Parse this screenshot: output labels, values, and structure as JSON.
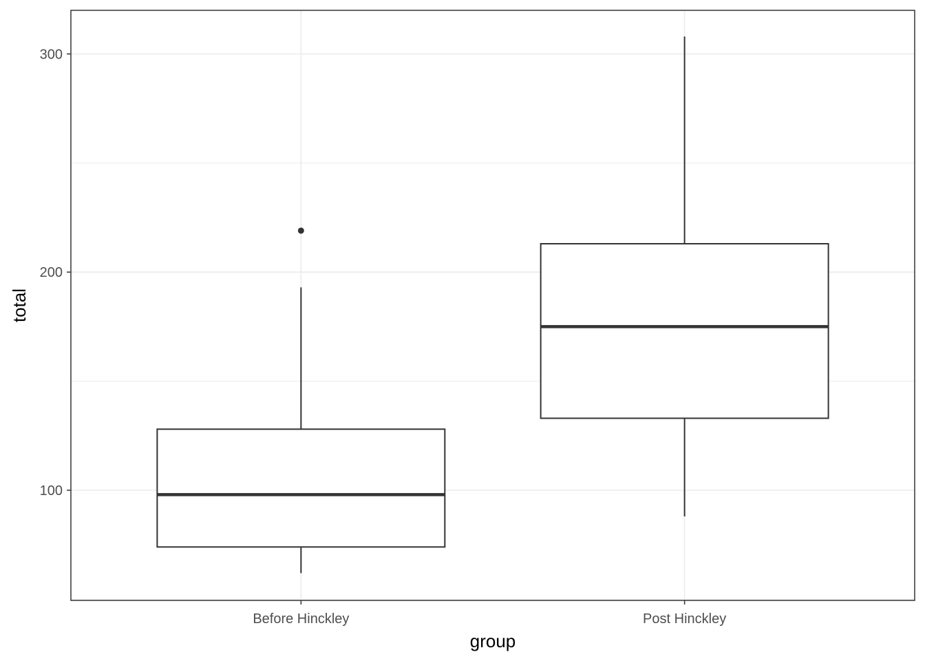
{
  "chart_data": {
    "type": "boxplot",
    "title": "",
    "xlabel": "group",
    "ylabel": "total",
    "ylim": [
      49.5,
      320
    ],
    "y_ticks": [
      100,
      200,
      300
    ],
    "y_tick_labels": [
      "100",
      "200",
      "300"
    ],
    "grid": true,
    "categories": [
      "Before Hinckley",
      "Post Hinckley"
    ],
    "boxes": [
      {
        "category": "Before Hinckley",
        "whisker_low": 62,
        "q1": 74,
        "median": 98,
        "q3": 128,
        "whisker_high": 193,
        "outliers": [
          219
        ]
      },
      {
        "category": "Post Hinckley",
        "whisker_low": 88,
        "q1": 133,
        "median": 175,
        "q3": 213,
        "whisker_high": 308,
        "outliers": []
      }
    ],
    "colors": {
      "box_line": "#333333",
      "grid": "#ebebeb",
      "panel_border": "#333333",
      "tick_text": "#4d4d4d"
    }
  }
}
